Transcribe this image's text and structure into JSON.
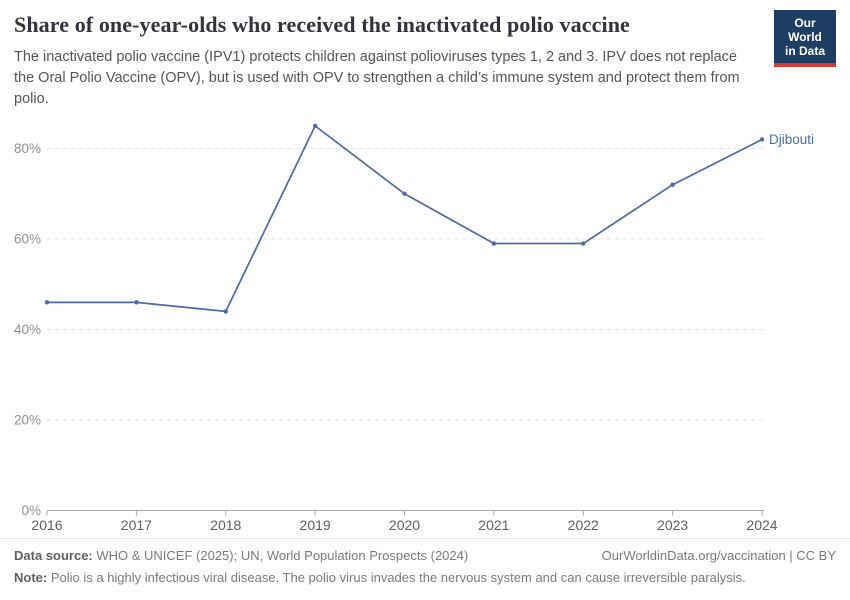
{
  "header": {
    "title": "Share of one-year-olds who received the inactivated polio vaccine",
    "subtitle": "The inactivated polio vaccine (IPV1) protects children against polioviruses types 1, 2 and 3. IPV does not replace the Oral Polio Vaccine (OPV), but is used with OPV to strengthen a child’s immune system and protect them from polio.",
    "logo": {
      "line1": "Our World",
      "line2": "in Data",
      "bg_color": "#1d3d63",
      "accent_color": "#d73b33"
    }
  },
  "chart_data": {
    "type": "line",
    "title": "Share of one-year-olds who received the inactivated polio vaccine",
    "x": [
      2016,
      2017,
      2018,
      2019,
      2020,
      2021,
      2022,
      2023,
      2024
    ],
    "series": [
      {
        "name": "Djibouti",
        "color": "#4c6ba0",
        "values": [
          46,
          46,
          44,
          85,
          70,
          59,
          59,
          72,
          82
        ]
      }
    ],
    "unit": "%",
    "yticks": [
      0,
      20,
      40,
      60,
      80
    ],
    "ytick_format": "{v}%",
    "ylim": [
      0,
      88
    ],
    "xlabel": "",
    "ylabel": "",
    "grid": "horizontal-dashed",
    "legend": "end-of-line-label",
    "colors": {
      "line": "#4c6ba0",
      "gridline": "#e2e2e2",
      "axis": "#a9a9a9",
      "y_tick_label": "#909090",
      "x_tick_label": "#5e5e5e"
    }
  },
  "footer": {
    "datasource_label": "Data source:",
    "datasource_text": " WHO & UNICEF (2025); UN, World Population Prospects (2024)",
    "link_text": "OurWorldinData.org/vaccination | CC BY",
    "note_label": "Note:",
    "note_text": " Polio is a highly infectious viral disease. The polio virus invades the nervous system and can cause irreversible paralysis."
  }
}
